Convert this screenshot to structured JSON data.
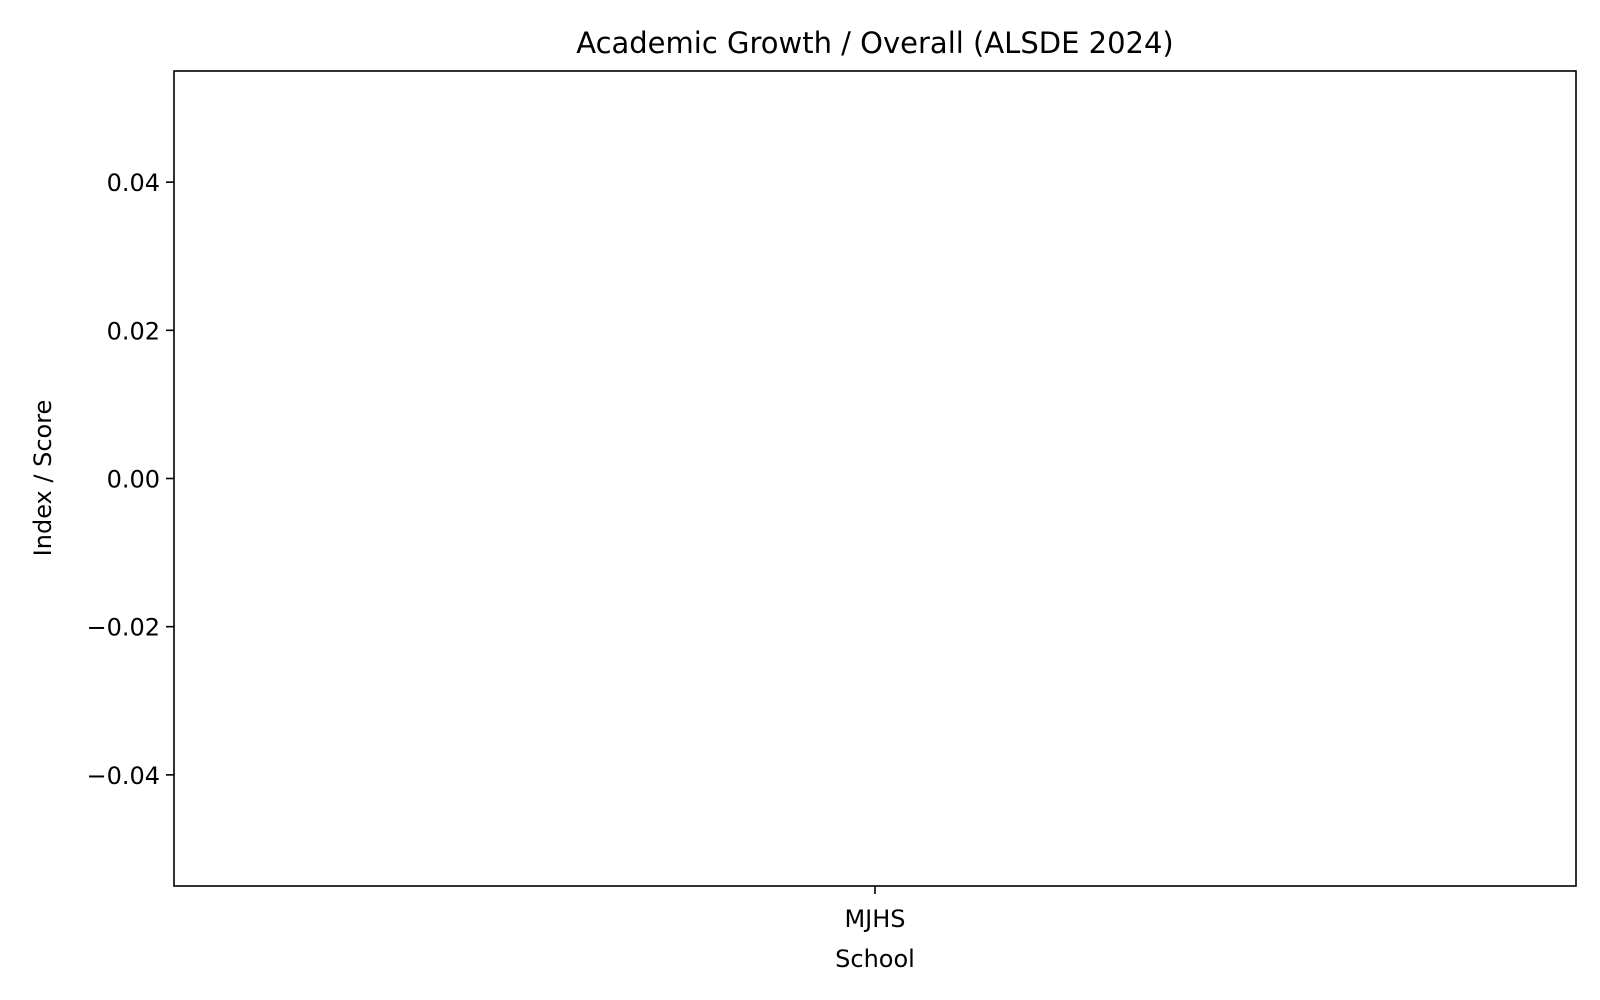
{
  "chart_data": {
    "type": "bar",
    "title": "Academic Growth / Overall (ALSDE 2024)",
    "xlabel": "School",
    "ylabel": "Index / Score",
    "categories": [
      "MJHS"
    ],
    "series": [
      {
        "values": [
          null
        ]
      }
    ],
    "ylim": [
      -0.055,
      0.055
    ],
    "yticks": [
      -0.04,
      -0.02,
      0.0,
      0.02,
      0.04
    ],
    "ytick_labels": [
      "−0.04",
      "−0.02",
      "0.00",
      "0.02",
      "0.04"
    ],
    "grid": false,
    "legend": "none",
    "colors": {
      "frame": "#000000",
      "background": "#ffffff",
      "bar": "#1f77b4"
    }
  }
}
